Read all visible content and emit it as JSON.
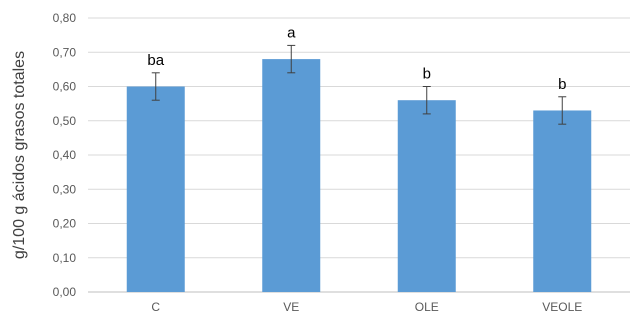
{
  "chart_data": {
    "type": "bar",
    "title": "",
    "xlabel": "",
    "ylabel": "g/100 g ácidos grasos totales",
    "categories": [
      "C",
      "VE",
      "OLE",
      "VEOLE"
    ],
    "values": [
      0.6,
      0.68,
      0.56,
      0.53
    ],
    "errors": [
      0.04,
      0.04,
      0.04,
      0.04
    ],
    "significance": [
      "ba",
      "a",
      "b",
      "b"
    ],
    "ylim": [
      0,
      0.8
    ],
    "yticks": [
      0.0,
      0.1,
      0.2,
      0.3,
      0.4,
      0.5,
      0.6,
      0.7,
      0.8
    ],
    "ytick_labels": [
      "0,00",
      "0,10",
      "0,20",
      "0,30",
      "0,40",
      "0,50",
      "0,60",
      "0,70",
      "0,80"
    ],
    "grid": true,
    "bar_color": "#5b9bd5"
  }
}
